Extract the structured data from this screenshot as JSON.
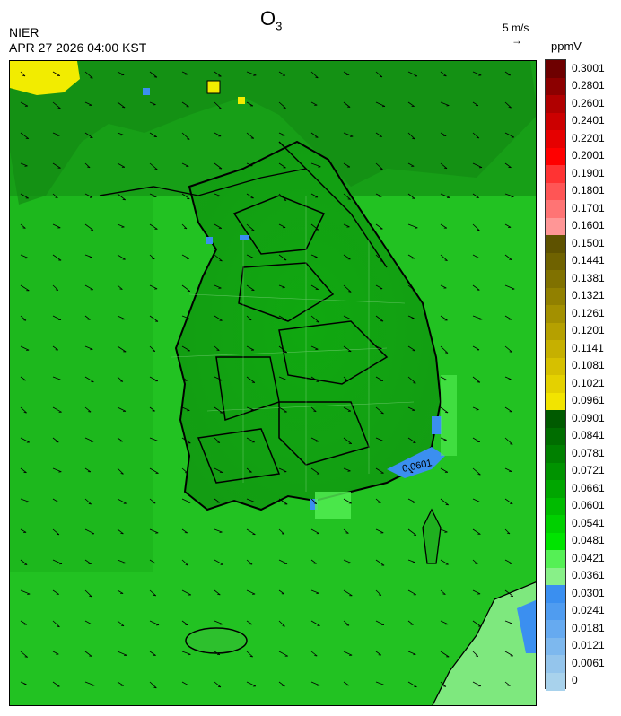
{
  "header": {
    "species_main": "O",
    "species_sub": "3",
    "agency": "NIER",
    "timestamp": "APR 27 2026 04:00 KST",
    "wind_reference": "5 m/s",
    "wind_reference_arrow": "→",
    "unit": "ppmV"
  },
  "map": {
    "contour_label": "0.0601",
    "base_color": "#1fc21f",
    "land_color": "#12a012",
    "high_color": "#f2ec00",
    "low_color": "#3b8ff0",
    "wind_direction": "southeast"
  },
  "legend": {
    "items": [
      {
        "label": "0.3001",
        "color": "#6e0000"
      },
      {
        "label": "0.2801",
        "color": "#8c0000"
      },
      {
        "label": "0.2601",
        "color": "#b00000"
      },
      {
        "label": "0.2401",
        "color": "#cc0000"
      },
      {
        "label": "0.2201",
        "color": "#e60000"
      },
      {
        "label": "0.2001",
        "color": "#ff0000"
      },
      {
        "label": "0.1901",
        "color": "#ff3333"
      },
      {
        "label": "0.1801",
        "color": "#ff5555"
      },
      {
        "label": "0.1701",
        "color": "#ff7474"
      },
      {
        "label": "0.1601",
        "color": "#ff9696"
      },
      {
        "label": "0.1501",
        "color": "#5e5200"
      },
      {
        "label": "0.1441",
        "color": "#6f6200"
      },
      {
        "label": "0.1381",
        "color": "#807100"
      },
      {
        "label": "0.1321",
        "color": "#918000"
      },
      {
        "label": "0.1261",
        "color": "#a39000"
      },
      {
        "label": "0.1201",
        "color": "#b5a000"
      },
      {
        "label": "0.1141",
        "color": "#c6b000"
      },
      {
        "label": "0.1081",
        "color": "#d6c000"
      },
      {
        "label": "0.1021",
        "color": "#e4d100"
      },
      {
        "label": "0.0961",
        "color": "#f2e400"
      },
      {
        "label": "0.0901",
        "color": "#005a00"
      },
      {
        "label": "0.0841",
        "color": "#006d00"
      },
      {
        "label": "0.0781",
        "color": "#008000"
      },
      {
        "label": "0.0721",
        "color": "#009300"
      },
      {
        "label": "0.0661",
        "color": "#00a600"
      },
      {
        "label": "0.0601",
        "color": "#00bb00"
      },
      {
        "label": "0.0541",
        "color": "#00d000"
      },
      {
        "label": "0.0481",
        "color": "#00e400"
      },
      {
        "label": "0.0421",
        "color": "#55f055"
      },
      {
        "label": "0.0361",
        "color": "#88f088"
      },
      {
        "label": "0.0301",
        "color": "#3a8ff0"
      },
      {
        "label": "0.0241",
        "color": "#4f9cf0"
      },
      {
        "label": "0.0181",
        "color": "#66aaf0"
      },
      {
        "label": "0.0121",
        "color": "#7db8ee"
      },
      {
        "label": "0.0061",
        "color": "#94c5ec"
      },
      {
        "label": "0",
        "color": "#a8d2ec"
      }
    ]
  }
}
